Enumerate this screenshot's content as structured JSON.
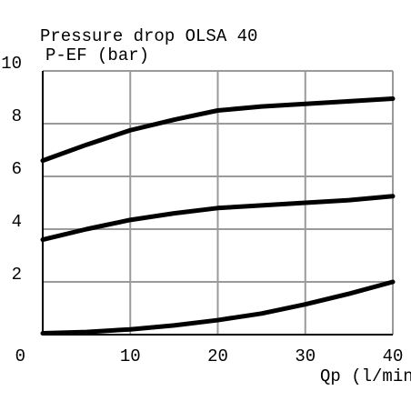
{
  "chart_data": {
    "type": "line",
    "title": "Pressure drop OLSA 40",
    "y_label": "P-EF (bar)",
    "x_label": "Qp (l/min)",
    "x": [
      0,
      5,
      10,
      15,
      20,
      25,
      30,
      35,
      40
    ],
    "series": [
      {
        "color": "#000000",
        "values": [
          6.6,
          7.2,
          7.75,
          8.15,
          8.5,
          8.65,
          8.75,
          8.85,
          8.95
        ]
      },
      {
        "color": "#000000",
        "values": [
          3.6,
          4.0,
          4.35,
          4.6,
          4.8,
          4.9,
          5.0,
          5.1,
          5.25
        ]
      },
      {
        "color": "#000000",
        "values": [
          0.05,
          0.1,
          0.2,
          0.35,
          0.55,
          0.8,
          1.15,
          1.55,
          2.0
        ]
      }
    ],
    "xlim": [
      0,
      40
    ],
    "ylim": [
      0,
      10
    ],
    "xticks": [
      0,
      10,
      20,
      30,
      40
    ],
    "yticks": [
      2,
      4,
      6,
      8,
      10
    ],
    "grid": true,
    "grid_color": "#9a9a9a"
  }
}
